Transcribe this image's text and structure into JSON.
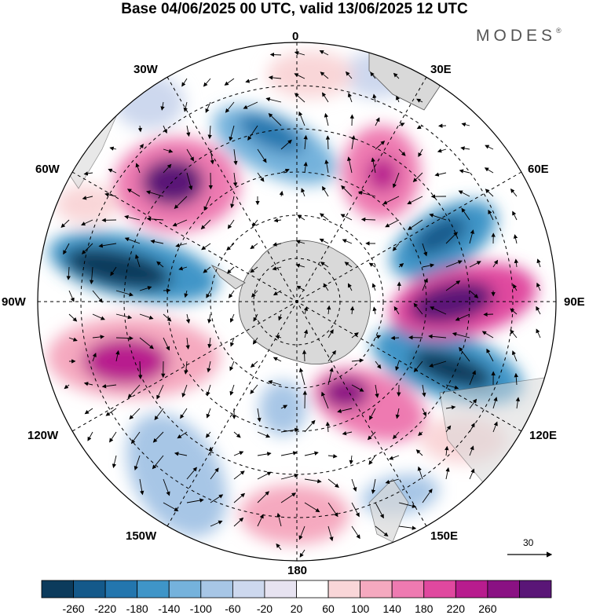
{
  "title": "Base 04/06/2025 00 UTC, valid 13/06/2025 12 UTC",
  "brand": "MODES",
  "brand_mark": "®",
  "map": {
    "longitude_labels": {
      "lon_0": "0",
      "lon_30e": "30E",
      "lon_60e": "60E",
      "lon_90e": "90E",
      "lon_120e": "120E",
      "lon_150e": "150E",
      "lon_180": "180",
      "lon_150w": "150W",
      "lon_120w": "120W",
      "lon_90w": "90W",
      "lon_60w": "60W",
      "lon_30w": "30W"
    },
    "projection": "south polar stereographic",
    "field": "anomaly with wind vectors",
    "colors": {
      "negative_max": "#0b4a6e",
      "positive_max": "#5a1677",
      "land": "#d9d9d9",
      "neutral": "#ffffff"
    }
  },
  "reference_vector": {
    "label": "30"
  },
  "colorbar": {
    "ticks": [
      "-260",
      "-220",
      "-180",
      "-140",
      "-100",
      "-60",
      "-20",
      "20",
      "60",
      "100",
      "140",
      "180",
      "220",
      "260"
    ],
    "colors": [
      "#0c3b5c",
      "#14598a",
      "#2376ae",
      "#3f95c8",
      "#75b2dc",
      "#a7c6e6",
      "#cdd8ee",
      "#e7e3f1",
      "#ffffff",
      "#f9d6d8",
      "#f5a9bf",
      "#ee7ab1",
      "#e0489f",
      "#b81c8e",
      "#8a1183",
      "#5a1677"
    ]
  }
}
